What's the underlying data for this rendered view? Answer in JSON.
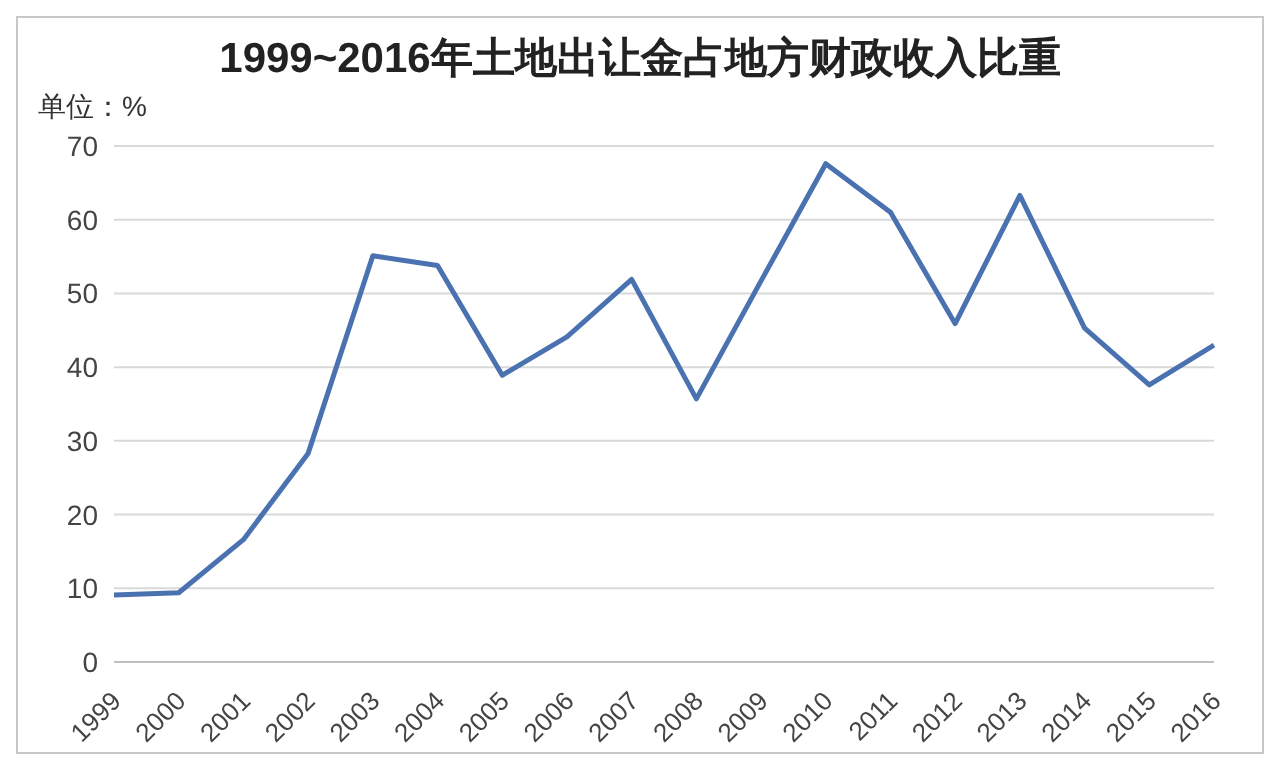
{
  "chart_data": {
    "type": "line",
    "title": "1999~2016年土地出让金占地方财政收入比重",
    "annotations": [
      "单位：%"
    ],
    "categories": [
      "1999",
      "2000",
      "2001",
      "2002",
      "2003",
      "2004",
      "2005",
      "2006",
      "2007",
      "2008",
      "2009",
      "2010",
      "2011",
      "2012",
      "2013",
      "2014",
      "2015",
      "2016"
    ],
    "series": [
      {
        "color": "#4a72b0",
        "values": [
          9.1,
          9.4,
          16.6,
          28.3,
          55.1,
          53.8,
          38.9,
          44.1,
          51.9,
          35.7,
          51.7,
          67.6,
          61.0,
          45.9,
          63.3,
          45.3,
          37.6,
          43.0
        ]
      }
    ],
    "ylim": [
      0,
      70
    ],
    "yticks": [
      0,
      10,
      20,
      30,
      40,
      50,
      60,
      70
    ],
    "grid": "y",
    "legend": false,
    "marker": "none",
    "line_style": "solid"
  }
}
